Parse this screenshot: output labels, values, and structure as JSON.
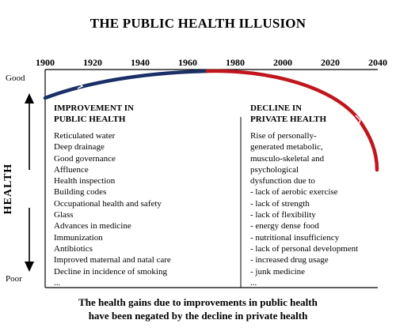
{
  "title": "THE PUBLIC HEALTH ILLUSION",
  "years": [
    "1900",
    "1920",
    "1940",
    "1960",
    "1980",
    "2000",
    "2020",
    "2040"
  ],
  "axis": {
    "good": "Good",
    "poor": "Poor",
    "health": "HEALTH"
  },
  "left_column": {
    "heading": [
      "IMPROVEMENT IN",
      "PUBLIC HEALTH"
    ],
    "items": [
      "Reticulated water",
      "Deep drainage",
      "Good governance",
      "Affluence",
      "Health inspection",
      "Building codes",
      "Occupational health and safety",
      "Glass",
      "Advances in medicine",
      "Immunization",
      "Antibiotics",
      "Improved maternal and natal care",
      "Decline in incidence of smoking",
      "..."
    ]
  },
  "right_column": {
    "heading": [
      "DECLINE IN",
      "PRIVATE HEALTH"
    ],
    "items": [
      "Rise of personally-",
      "generated metabolic,",
      "musculo-skeletal and",
      "psychological",
      "dysfunction due to",
      "-  lack of aerobic exercise",
      "-  lack of strength",
      "-  lack of flexibility",
      "-  energy dense food",
      "-  nutritional insufficiency",
      "-  lack of personal development",
      "-  increased drug usage",
      "-  junk medicine",
      "..."
    ]
  },
  "caption": [
    "The health gains due to improvements in public health",
    "have been negated by the decline in private health"
  ],
  "colors": {
    "public_curve": "#1a2f66",
    "private_curve": "#c0161d",
    "text": "#000000"
  }
}
